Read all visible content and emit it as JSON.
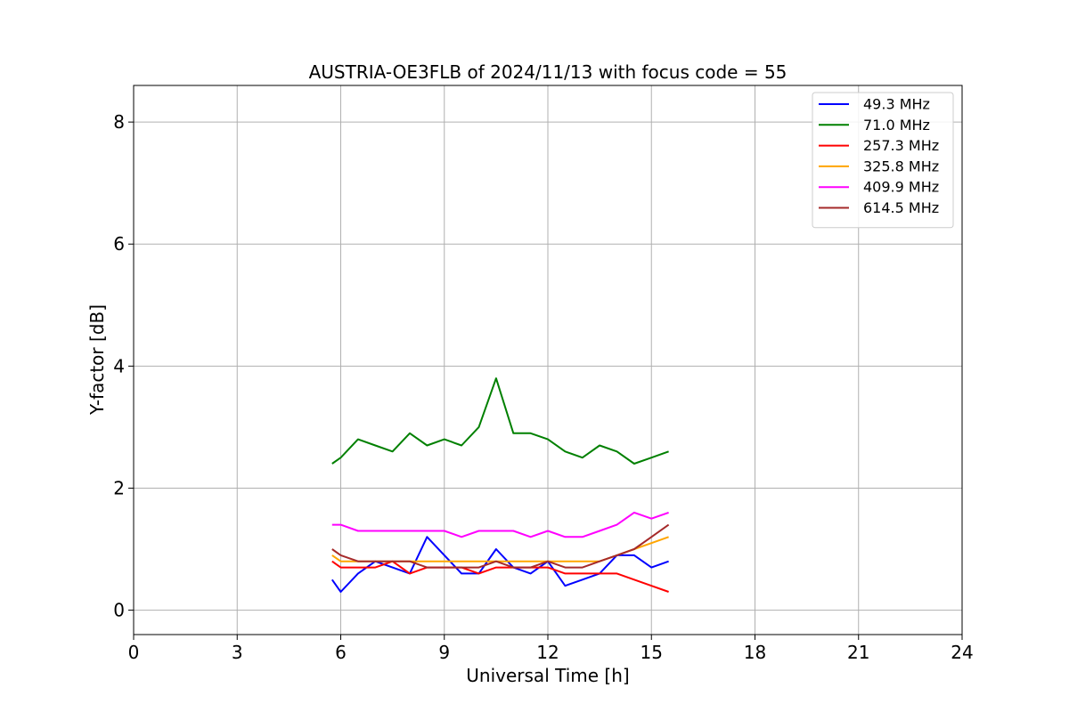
{
  "chart_data": {
    "type": "line",
    "title": "AUSTRIA-OE3FLB of 2024/11/13 with focus code = 55",
    "xlabel": "Universal Time [h]",
    "ylabel": "Y-factor [dB]",
    "xlim": [
      0,
      24
    ],
    "ylim": [
      -0.4,
      8.6
    ],
    "xticks": [
      0,
      3,
      6,
      9,
      12,
      15,
      18,
      21,
      24
    ],
    "yticks": [
      0,
      2,
      4,
      6,
      8
    ],
    "grid": true,
    "legend_position": "top-right",
    "series": [
      {
        "name": "49.3 MHz",
        "color": "#0000ff",
        "x": [
          5.75,
          6.0,
          6.5,
          7.0,
          7.5,
          8.0,
          8.5,
          9.0,
          9.5,
          10.0,
          10.5,
          11.0,
          11.5,
          12.0,
          12.5,
          13.0,
          13.5,
          14.0,
          14.5,
          15.0,
          15.5
        ],
        "y": [
          0.5,
          0.3,
          0.6,
          0.8,
          0.7,
          0.6,
          1.2,
          0.9,
          0.6,
          0.6,
          1.0,
          0.7,
          0.6,
          0.8,
          0.4,
          0.5,
          0.6,
          0.9,
          0.9,
          0.7,
          0.8
        ]
      },
      {
        "name": "71.0 MHz",
        "color": "#008000",
        "x": [
          5.75,
          6.0,
          6.5,
          7.0,
          7.5,
          8.0,
          8.5,
          9.0,
          9.5,
          10.0,
          10.5,
          11.0,
          11.5,
          12.0,
          12.5,
          13.0,
          13.5,
          14.0,
          14.5,
          15.0,
          15.5
        ],
        "y": [
          2.4,
          2.5,
          2.8,
          2.7,
          2.6,
          2.9,
          2.7,
          2.8,
          2.7,
          3.0,
          3.8,
          2.9,
          2.9,
          2.8,
          2.6,
          2.5,
          2.7,
          2.6,
          2.4,
          2.5,
          2.6
        ]
      },
      {
        "name": "257.3 MHz",
        "color": "#ff0000",
        "x": [
          5.75,
          6.0,
          6.5,
          7.0,
          7.5,
          8.0,
          8.5,
          9.0,
          9.5,
          10.0,
          10.5,
          11.0,
          11.5,
          12.0,
          12.5,
          13.0,
          13.5,
          14.0,
          14.5,
          15.0,
          15.5
        ],
        "y": [
          0.8,
          0.7,
          0.7,
          0.7,
          0.8,
          0.6,
          0.7,
          0.7,
          0.7,
          0.6,
          0.7,
          0.7,
          0.7,
          0.7,
          0.6,
          0.6,
          0.6,
          0.6,
          0.5,
          0.4,
          0.3
        ]
      },
      {
        "name": "325.8 MHz",
        "color": "#ffa500",
        "x": [
          5.75,
          6.0,
          6.5,
          7.0,
          7.5,
          8.0,
          8.5,
          9.0,
          9.5,
          10.0,
          10.5,
          11.0,
          11.5,
          12.0,
          12.5,
          13.0,
          13.5,
          14.0,
          14.5,
          15.0,
          15.5
        ],
        "y": [
          0.9,
          0.8,
          0.8,
          0.8,
          0.8,
          0.8,
          0.8,
          0.8,
          0.8,
          0.8,
          0.8,
          0.8,
          0.8,
          0.8,
          0.8,
          0.8,
          0.8,
          0.9,
          1.0,
          1.1,
          1.2
        ]
      },
      {
        "name": "409.9 MHz",
        "color": "#ff00ff",
        "x": [
          5.75,
          6.0,
          6.5,
          7.0,
          7.5,
          8.0,
          8.5,
          9.0,
          9.5,
          10.0,
          10.5,
          11.0,
          11.5,
          12.0,
          12.5,
          13.0,
          13.5,
          14.0,
          14.5,
          15.0,
          15.5
        ],
        "y": [
          1.4,
          1.4,
          1.3,
          1.3,
          1.3,
          1.3,
          1.3,
          1.3,
          1.2,
          1.3,
          1.3,
          1.3,
          1.2,
          1.3,
          1.2,
          1.2,
          1.3,
          1.4,
          1.6,
          1.5,
          1.6
        ]
      },
      {
        "name": "614.5 MHz",
        "color": "#a52a2a",
        "x": [
          5.75,
          6.0,
          6.5,
          7.0,
          7.5,
          8.0,
          8.5,
          9.0,
          9.5,
          10.0,
          10.5,
          11.0,
          11.5,
          12.0,
          12.5,
          13.0,
          13.5,
          14.0,
          14.5,
          15.0,
          15.5
        ],
        "y": [
          1.0,
          0.9,
          0.8,
          0.8,
          0.8,
          0.8,
          0.7,
          0.7,
          0.7,
          0.7,
          0.8,
          0.7,
          0.7,
          0.8,
          0.7,
          0.7,
          0.8,
          0.9,
          1.0,
          1.2,
          1.4
        ]
      }
    ]
  }
}
